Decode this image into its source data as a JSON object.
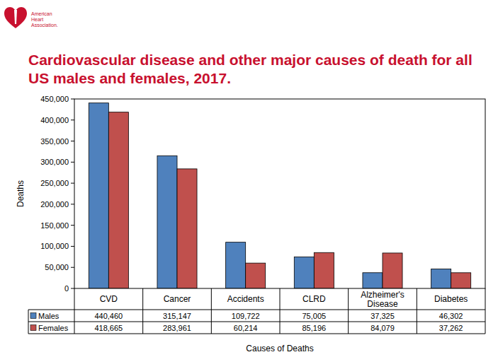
{
  "logo": "American Heart Association.",
  "chart_data": {
    "type": "bar",
    "title": "Cardiovascular disease and other major causes of death for all US males and females, 2017.",
    "y_label": "Deaths",
    "x_label": "Causes of Deaths",
    "categories": [
      "CVD",
      "Cancer",
      "Accidents",
      "CLRD",
      "Alzheimer's Disease",
      "Diabetes"
    ],
    "series": [
      {
        "name": "Males",
        "color": "#4f81bd",
        "values": [
          440460,
          315147,
          109722,
          75005,
          37325,
          46302
        ],
        "value_labels": [
          "440,460",
          "315,147",
          "109,722",
          "75,005",
          "37,325",
          "46,302"
        ]
      },
      {
        "name": "Females",
        "color": "#c0504d",
        "values": [
          418665,
          283961,
          60214,
          85196,
          84079,
          37262
        ],
        "value_labels": [
          "418,665",
          "283,961",
          "60,214",
          "85,196",
          "84,079",
          "37,262"
        ]
      }
    ],
    "ylim": [
      0,
      450000
    ],
    "yticks": [
      0,
      {
        "value": 50000,
        "label": "50,000"
      },
      {
        "value": 100000,
        "label": "100,000"
      },
      {
        "value": 150000,
        "label": "150,000"
      },
      {
        "value": 200000,
        "label": "200,000"
      },
      {
        "value": 250000,
        "label": "250,000"
      },
      {
        "value": 300000,
        "label": "300,000"
      },
      {
        "value": 350000,
        "label": "350,000"
      },
      {
        "value": 400000,
        "label": "400,000"
      },
      {
        "value": 450000,
        "label": "450,000"
      }
    ],
    "grid": false
  }
}
